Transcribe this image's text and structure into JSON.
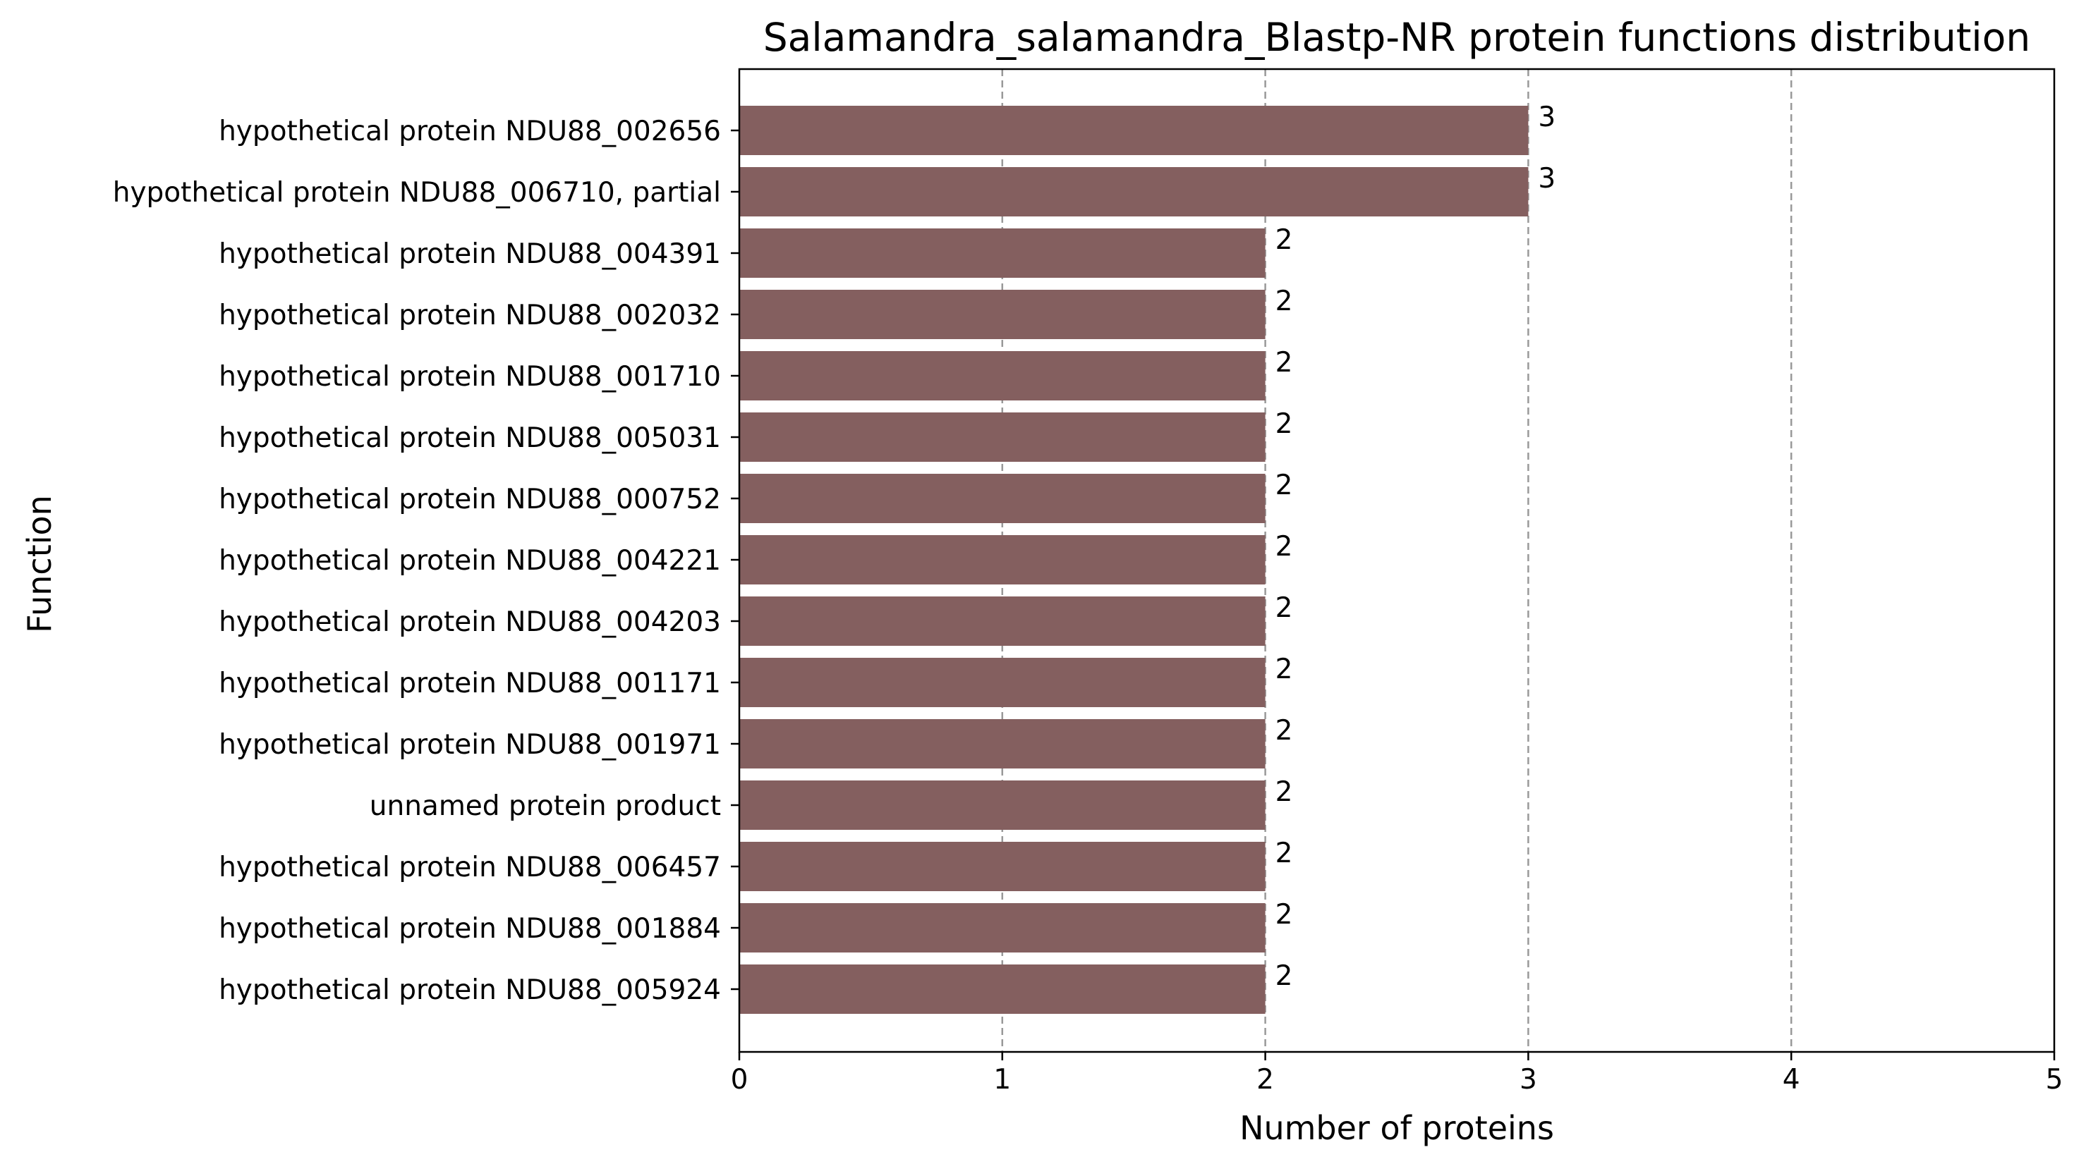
{
  "chart_data": {
    "type": "bar",
    "orientation": "horizontal",
    "title": "Salamandra_salamandra_Blastp-NR protein functions distribution",
    "xlabel": "Number of proteins",
    "ylabel": "Function",
    "xlim": [
      0,
      5
    ],
    "xticks": [
      "0",
      "1",
      "2",
      "3",
      "4",
      "5"
    ],
    "grid": "x-dashed",
    "bar_color": "#845f5f",
    "categories": [
      "hypothetical protein NDU88_002656",
      "hypothetical protein NDU88_006710, partial",
      "hypothetical protein NDU88_004391",
      "hypothetical protein NDU88_002032",
      "hypothetical protein NDU88_001710",
      "hypothetical protein NDU88_005031",
      "hypothetical protein NDU88_000752",
      "hypothetical protein NDU88_004221",
      "hypothetical protein NDU88_004203",
      "hypothetical protein NDU88_001171",
      "hypothetical protein NDU88_001971",
      "unnamed protein product",
      "hypothetical protein NDU88_006457",
      "hypothetical protein NDU88_001884",
      "hypothetical protein NDU88_005924"
    ],
    "values": [
      3,
      3,
      2,
      2,
      2,
      2,
      2,
      2,
      2,
      2,
      2,
      2,
      2,
      2,
      2
    ],
    "data_labels": [
      "3",
      "3",
      "2",
      "2",
      "2",
      "2",
      "2",
      "2",
      "2",
      "2",
      "2",
      "2",
      "2",
      "2",
      "2"
    ]
  }
}
